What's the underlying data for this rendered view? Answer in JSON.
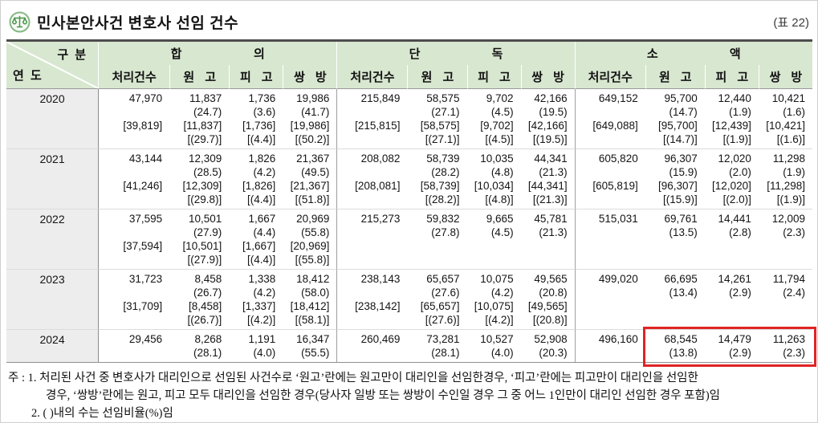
{
  "page": {
    "title": "민사본안사건 변호사 선임 건수",
    "table_ref": "(표 22)"
  },
  "colors": {
    "header_green": "#d8e7d0",
    "highlight_red": "#e02424",
    "icon_green": "#5a9e5a",
    "year_col_gray": "#ededed"
  },
  "table": {
    "corner": {
      "top": "구 분",
      "bottom": "연 도"
    },
    "groups": [
      {
        "label": "합 의"
      },
      {
        "label": "단 독"
      },
      {
        "label": "소 액"
      }
    ],
    "sub_headers": [
      "처리건수",
      "원 고",
      "피 고",
      "쌍 방"
    ],
    "rows": [
      {
        "year": "2020",
        "cells": [
          [
            "47,970",
            "",
            "[39,819]",
            ""
          ],
          [
            "11,837",
            "(24.7)",
            "[11,837]",
            "[(29.7)]"
          ],
          [
            "1,736",
            "(3.6)",
            "[1,736]",
            "[(4.4)]"
          ],
          [
            "19,986",
            "(41.7)",
            "[19,986]",
            "[(50.2)]"
          ],
          [
            "215,849",
            "",
            "[215,815]",
            ""
          ],
          [
            "58,575",
            "(27.1)",
            "[58,575]",
            "[(27.1)]"
          ],
          [
            "9,702",
            "(4.5)",
            "[9,702]",
            "[(4.5)]"
          ],
          [
            "42,166",
            "(19.5)",
            "[42,166]",
            "[(19.5)]"
          ],
          [
            "649,152",
            "",
            "[649,088]",
            ""
          ],
          [
            "95,700",
            "(14.7)",
            "[95,700]",
            "[(14.7)]"
          ],
          [
            "12,440",
            "(1.9)",
            "[12,439]",
            "[(1.9)]"
          ],
          [
            "10,421",
            "(1.6)",
            "[10,421]",
            "[(1.6)]"
          ]
        ]
      },
      {
        "year": "2021",
        "cells": [
          [
            "43,144",
            "",
            "[41,246]",
            ""
          ],
          [
            "12,309",
            "(28.5)",
            "[12,309]",
            "[(29.8)]"
          ],
          [
            "1,826",
            "(4.2)",
            "[1,826]",
            "[(4.4)]"
          ],
          [
            "21,367",
            "(49.5)",
            "[21,367]",
            "[(51.8)]"
          ],
          [
            "208,082",
            "",
            "[208,081]",
            ""
          ],
          [
            "58,739",
            "(28.2)",
            "[58,739]",
            "[(28.2)]"
          ],
          [
            "10,035",
            "(4.8)",
            "[10,034]",
            "[(4.8)]"
          ],
          [
            "44,341",
            "(21.3)",
            "[44,341]",
            "[(21.3)]"
          ],
          [
            "605,820",
            "",
            "[605,819]",
            ""
          ],
          [
            "96,307",
            "(15.9)",
            "[96,307]",
            "[(15.9)]"
          ],
          [
            "12,020",
            "(2.0)",
            "[12,020]",
            "[(2.0)]"
          ],
          [
            "11,298",
            "(1.9)",
            "[11,298]",
            "[(1.9)]"
          ]
        ]
      },
      {
        "year": "2022",
        "cells": [
          [
            "37,595",
            "",
            "[37,594]",
            ""
          ],
          [
            "10,501",
            "(27.9)",
            "[10,501]",
            "[(27.9)]"
          ],
          [
            "1,667",
            "(4.4)",
            "[1,667]",
            "[(4.4)]"
          ],
          [
            "20,969",
            "(55.8)",
            "[20,969]",
            "[(55.8)]"
          ],
          [
            "215,273",
            "",
            "",
            ""
          ],
          [
            "59,832",
            "(27.8)",
            "",
            ""
          ],
          [
            "9,665",
            "(4.5)",
            "",
            ""
          ],
          [
            "45,781",
            "(21.3)",
            "",
            ""
          ],
          [
            "515,031",
            "",
            "",
            ""
          ],
          [
            "69,761",
            "(13.5)",
            "",
            ""
          ],
          [
            "14,441",
            "(2.8)",
            "",
            ""
          ],
          [
            "12,009",
            "(2.3)",
            "",
            ""
          ]
        ]
      },
      {
        "year": "2023",
        "cells": [
          [
            "31,723",
            "",
            "[31,709]",
            ""
          ],
          [
            "8,458",
            "(26.7)",
            "[8,458]",
            "[(26.7)]"
          ],
          [
            "1,338",
            "(4.2)",
            "[1,337]",
            "[(4.2)]"
          ],
          [
            "18,412",
            "(58.0)",
            "[18,412]",
            "[(58.1)]"
          ],
          [
            "238,143",
            "",
            "[238,142]",
            ""
          ],
          [
            "65,657",
            "(27.6)",
            "[65,657]",
            "[(27.6)]"
          ],
          [
            "10,075",
            "(4.2)",
            "[10,075]",
            "[(4.2)]"
          ],
          [
            "49,565",
            "(20.8)",
            "[49,565]",
            "[(20.8)]"
          ],
          [
            "499,020",
            "",
            "",
            ""
          ],
          [
            "66,695",
            "(13.4)",
            "",
            ""
          ],
          [
            "14,261",
            "(2.9)",
            "",
            ""
          ],
          [
            "11,794",
            "(2.4)",
            "",
            ""
          ]
        ]
      },
      {
        "year": "2024",
        "cells": [
          [
            "29,456",
            ""
          ],
          [
            "8,268",
            "(28.1)"
          ],
          [
            "1,191",
            "(4.0)"
          ],
          [
            "16,347",
            "(55.5)"
          ],
          [
            "260,469",
            ""
          ],
          [
            "73,281",
            "(28.1)"
          ],
          [
            "10,527",
            "(4.0)"
          ],
          [
            "52,908",
            "(20.3)"
          ],
          [
            "496,160",
            ""
          ],
          [
            "68,545",
            "(13.8)"
          ],
          [
            "14,479",
            "(2.9)"
          ],
          [
            "11,263",
            "(2.3)"
          ]
        ]
      }
    ],
    "highlight": {
      "year": "2024",
      "col_start": 9,
      "col_end": 11
    }
  },
  "notes": {
    "line1": "주 : 1. 처리된 사건 중 변호사가 대리인으로 선임된 사건수로 ‘원고’란에는 원고만이 대리인을 선임한경우, ‘피고’란에는 피고만이 대리인을 선임한",
    "line2": "경우, ‘쌍방’란에는 원고, 피고 모두 대리인을 선임한 경우(당사자 일방 또는 쌍방이 수인일 경우 그 중 어느 1인만이 대리인 선임한 경우 포함)임",
    "line3": "2. (  )내의 수는 선임비율(%)임"
  }
}
